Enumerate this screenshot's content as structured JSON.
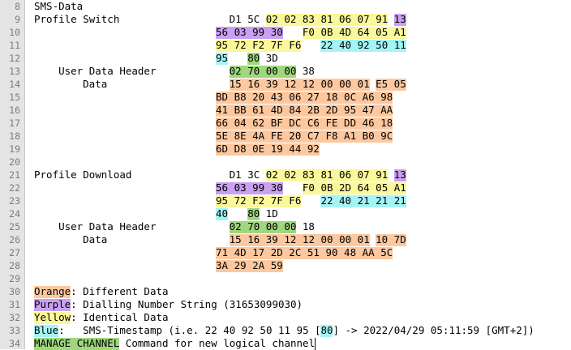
{
  "editor": {
    "lines": [
      {
        "n": "8",
        "tokens": [
          {
            "col": 0,
            "text": "SMS-Data"
          }
        ]
      },
      {
        "n": "9",
        "tokens": [
          {
            "col": 0,
            "text": "Profile Switch"
          },
          {
            "col": 32,
            "text": "D1 5C"
          },
          {
            "col": 38,
            "text": "02 02 83 81 06 07 91",
            "bg": "yellow"
          },
          {
            "col": 59,
            "text": "13",
            "bg": "purple"
          }
        ]
      },
      {
        "n": "10",
        "tokens": [
          {
            "col": 0,
            "text": "56 03 99 30",
            "bg": "purple",
            "from": 0
          },
          {
            "col": 44,
            "text": "F0 0B 4D 64 05 A1",
            "bg": "yellow"
          }
        ]
      },
      {
        "n": "11",
        "tokens": [
          {
            "col": 0,
            "text": "95 72 F2 7F F6",
            "bg": "yellow",
            "from": 0
          },
          {
            "col": 47,
            "text": "22 40 92 50 11",
            "bg": "blue"
          }
        ]
      },
      {
        "n": "12",
        "tokens": [
          {
            "col": 0,
            "text": "95",
            "bg": "blue",
            "from": 0
          },
          {
            "col": 35,
            "text": "80",
            "bg": "green"
          },
          {
            "col": 38,
            "text": "3D"
          }
        ]
      },
      {
        "n": "13",
        "tokens": [
          {
            "col": 4,
            "text": "User Data Header"
          },
          {
            "col": 32,
            "text": "02 70 00 00",
            "bg": "green"
          },
          {
            "col": 44,
            "text": "38"
          }
        ]
      },
      {
        "n": "14",
        "tokens": [
          {
            "col": 8,
            "text": "Data"
          },
          {
            "col": 32,
            "text": "15 16 39 12 12 00 00 01",
            "bg": "orange"
          },
          {
            "col": 56,
            "text": "E5 05",
            "bg": "orange"
          }
        ]
      },
      {
        "n": "15",
        "tokens": [
          {
            "col": 0,
            "text": "BD B8 20 43 06 27 18 0C A6 98",
            "bg": "orange",
            "from": 0
          }
        ]
      },
      {
        "n": "16",
        "tokens": [
          {
            "col": 0,
            "text": "41 BB 61 4D 84 2B 2D 95 47 AA",
            "bg": "orange",
            "from": 0
          }
        ]
      },
      {
        "n": "17",
        "tokens": [
          {
            "col": 0,
            "text": "66 04 62 BF DC C6 FE DD 46 18",
            "bg": "orange",
            "from": 0
          }
        ]
      },
      {
        "n": "18",
        "tokens": [
          {
            "col": 0,
            "text": "5E 8E 4A FE 20 C7 F8 A1 B0 9C",
            "bg": "orange",
            "from": 0
          }
        ]
      },
      {
        "n": "19",
        "tokens": [
          {
            "col": 0,
            "text": "6D D8 0E 19 44 92",
            "bg": "orange",
            "from": 0
          }
        ]
      },
      {
        "n": "20",
        "tokens": []
      },
      {
        "n": "21",
        "tokens": [
          {
            "col": 0,
            "text": "Profile Download"
          },
          {
            "col": 32,
            "text": "D1 3C"
          },
          {
            "col": 38,
            "text": "02 02 83 81 06 07 91",
            "bg": "yellow"
          },
          {
            "col": 59,
            "text": "13",
            "bg": "purple"
          }
        ]
      },
      {
        "n": "22",
        "tokens": [
          {
            "col": 0,
            "text": "56 03 99 30",
            "bg": "purple",
            "from": 0
          },
          {
            "col": 44,
            "text": "F0 0B 2D 64 05 A1",
            "bg": "yellow"
          }
        ]
      },
      {
        "n": "23",
        "tokens": [
          {
            "col": 0,
            "text": "95 72 F2 7F F6",
            "bg": "yellow",
            "from": 0
          },
          {
            "col": 47,
            "text": "22 40 21 21 21",
            "bg": "blue"
          }
        ]
      },
      {
        "n": "24",
        "tokens": [
          {
            "col": 0,
            "text": "40",
            "bg": "blue",
            "from": 0
          },
          {
            "col": 35,
            "text": "80",
            "bg": "green"
          },
          {
            "col": 38,
            "text": "1D"
          }
        ]
      },
      {
        "n": "25",
        "tokens": [
          {
            "col": 4,
            "text": "User Data Header"
          },
          {
            "col": 32,
            "text": "02 70 00 00",
            "bg": "green"
          },
          {
            "col": 44,
            "text": "18"
          }
        ]
      },
      {
        "n": "26",
        "tokens": [
          {
            "col": 8,
            "text": "Data"
          },
          {
            "col": 32,
            "text": "15 16 39 12 12 00 00 01",
            "bg": "orange"
          },
          {
            "col": 56,
            "text": "10 7D",
            "bg": "orange"
          }
        ]
      },
      {
        "n": "27",
        "tokens": [
          {
            "col": 0,
            "text": "71 4D 17 2D 2C 51 90 48 AA 5C",
            "bg": "orange",
            "from": 0
          }
        ]
      },
      {
        "n": "28",
        "tokens": [
          {
            "col": 0,
            "text": "3A 29 2A 59",
            "bg": "orange",
            "from": 0
          }
        ]
      },
      {
        "n": "29",
        "tokens": []
      },
      {
        "n": "30",
        "tokens": [
          {
            "col": 0,
            "text": "Orange",
            "bg": "orange"
          },
          {
            "col": 6,
            "text": ": Different Data"
          }
        ]
      },
      {
        "n": "31",
        "tokens": [
          {
            "col": 0,
            "text": "Purple",
            "bg": "purple"
          },
          {
            "col": 6,
            "text": ": Dialling Number String (31653099030)"
          }
        ]
      },
      {
        "n": "32",
        "tokens": [
          {
            "col": 0,
            "text": "Yellow",
            "bg": "yellow"
          },
          {
            "col": 6,
            "text": ": Identical Data"
          }
        ]
      },
      {
        "n": "33",
        "tokens": [
          {
            "col": 0,
            "text": "Blue",
            "bg": "blue"
          },
          {
            "col": 4,
            "text": ":   SMS-Timestamp (i.e. 22 40 92 50 11 95 ["
          },
          {
            "col": 47,
            "text": "80",
            "bg": "blue"
          },
          {
            "col": 49,
            "text": "] -> 2022/04/29 05:11:59 [GMT+2])"
          }
        ]
      },
      {
        "n": "34",
        "tokens": [
          {
            "col": 0,
            "text": "MANAGE CHANNEL",
            "bg": "green"
          },
          {
            "col": 15,
            "text": "Command for new logical channel"
          }
        ]
      }
    ]
  },
  "colors": {
    "orange": "#fdc89f",
    "purple": "#caa0f2",
    "yellow": "#faf89a",
    "blue": "#a4f4f6",
    "green": "#9fd77f"
  }
}
